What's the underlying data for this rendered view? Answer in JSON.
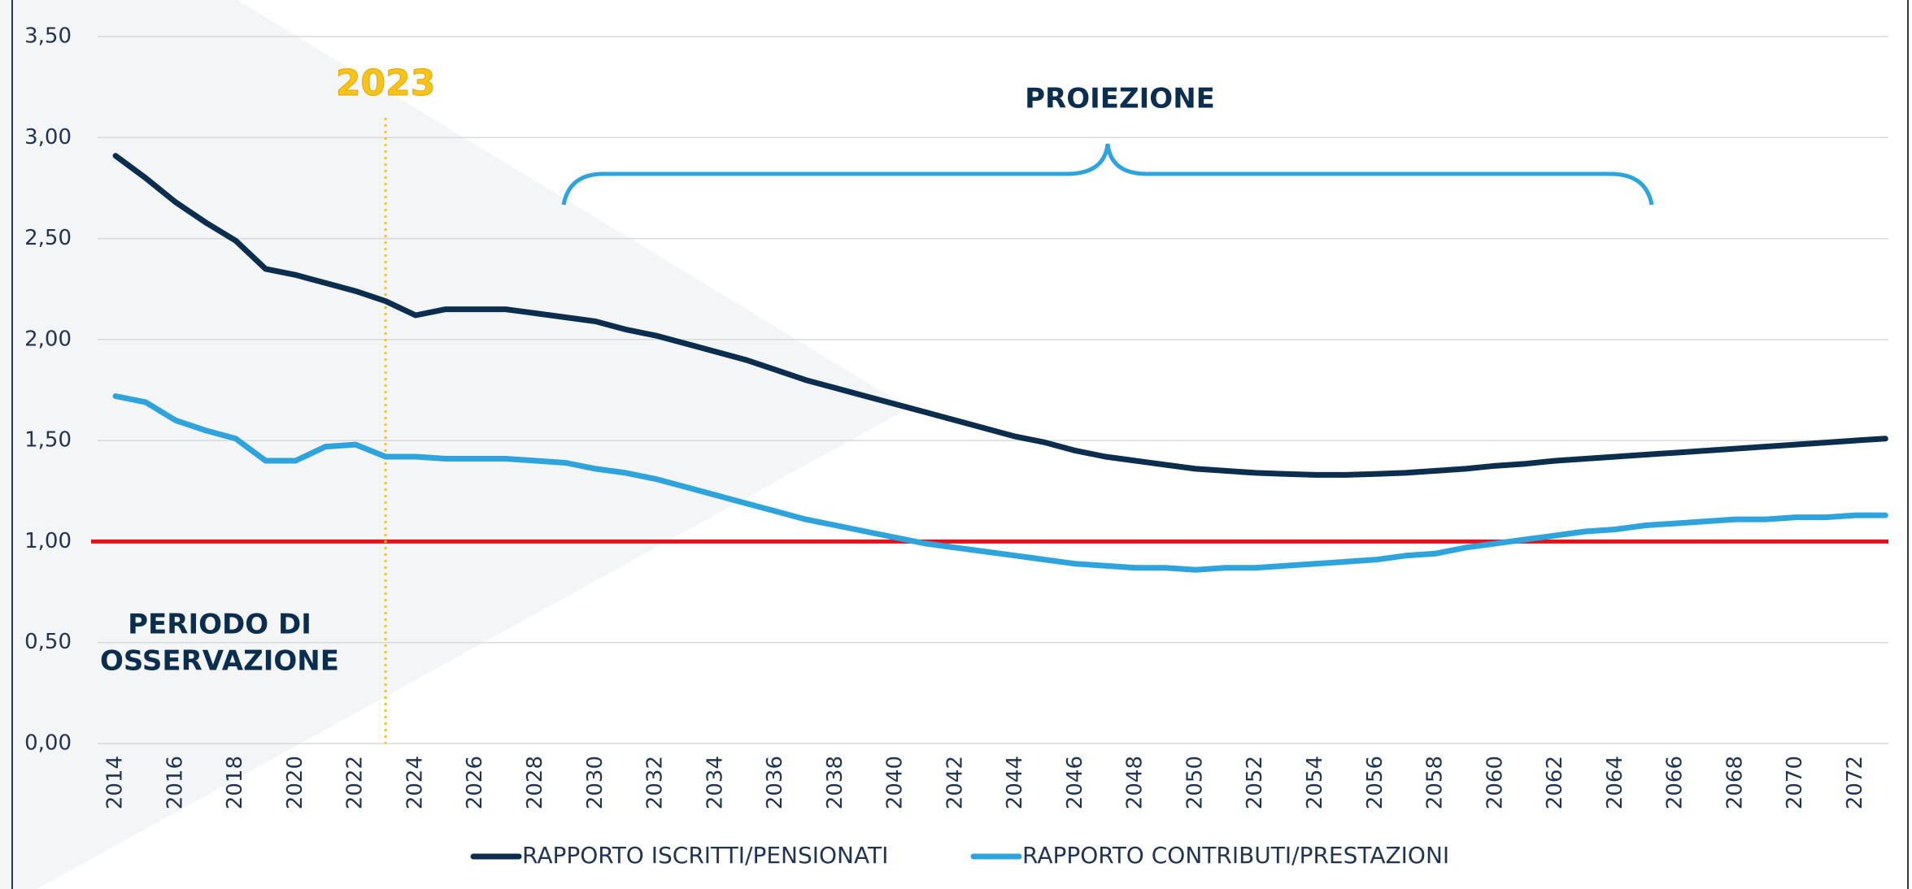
{
  "chart_data": {
    "type": "line",
    "x": [
      2014,
      2015,
      2016,
      2017,
      2018,
      2019,
      2020,
      2021,
      2022,
      2023,
      2024,
      2025,
      2026,
      2027,
      2028,
      2029,
      2030,
      2031,
      2032,
      2033,
      2034,
      2035,
      2036,
      2037,
      2038,
      2039,
      2040,
      2041,
      2042,
      2043,
      2044,
      2045,
      2046,
      2047,
      2048,
      2049,
      2050,
      2051,
      2052,
      2053,
      2054,
      2055,
      2056,
      2057,
      2058,
      2059,
      2060,
      2061,
      2062,
      2063,
      2064,
      2065,
      2066,
      2067,
      2068,
      2069,
      2070,
      2071,
      2072,
      2073
    ],
    "series": [
      {
        "name": "RAPPORTO ISCRITTI/PENSIONATI",
        "color": "#0b2d4e",
        "values": [
          2.91,
          2.8,
          2.68,
          2.58,
          2.49,
          2.35,
          2.32,
          2.28,
          2.24,
          2.19,
          2.12,
          2.15,
          2.15,
          2.15,
          2.13,
          2.11,
          2.09,
          2.05,
          2.02,
          1.98,
          1.94,
          1.9,
          1.85,
          1.8,
          1.76,
          1.72,
          1.68,
          1.64,
          1.6,
          1.56,
          1.52,
          1.49,
          1.45,
          1.42,
          1.4,
          1.38,
          1.36,
          1.35,
          1.34,
          1.335,
          1.33,
          1.33,
          1.335,
          1.34,
          1.35,
          1.36,
          1.375,
          1.385,
          1.4,
          1.41,
          1.42,
          1.43,
          1.44,
          1.45,
          1.46,
          1.47,
          1.48,
          1.49,
          1.5,
          1.51
        ]
      },
      {
        "name": "RAPPORTO CONTRIBUTI/PRESTAZIONI",
        "color": "#2ea3dc",
        "values": [
          1.72,
          1.69,
          1.6,
          1.55,
          1.51,
          1.4,
          1.4,
          1.47,
          1.48,
          1.42,
          1.42,
          1.41,
          1.41,
          1.41,
          1.4,
          1.39,
          1.36,
          1.34,
          1.31,
          1.27,
          1.23,
          1.19,
          1.15,
          1.11,
          1.08,
          1.05,
          1.02,
          0.99,
          0.97,
          0.95,
          0.93,
          0.91,
          0.89,
          0.88,
          0.87,
          0.87,
          0.86,
          0.87,
          0.87,
          0.88,
          0.89,
          0.9,
          0.91,
          0.93,
          0.94,
          0.97,
          0.99,
          1.01,
          1.03,
          1.05,
          1.06,
          1.08,
          1.09,
          1.1,
          1.11,
          1.11,
          1.12,
          1.12,
          1.13,
          1.13
        ]
      }
    ],
    "xlim": [
      2013.4,
      2073.1
    ],
    "xticks": [
      2014,
      2016,
      2018,
      2020,
      2022,
      2024,
      2026,
      2028,
      2030,
      2032,
      2034,
      2036,
      2038,
      2040,
      2042,
      2044,
      2046,
      2048,
      2050,
      2052,
      2054,
      2056,
      2058,
      2060,
      2062,
      2064,
      2066,
      2068,
      2070,
      2072
    ],
    "ylim": [
      0,
      3.5
    ],
    "yticks": [
      {
        "value": 0,
        "label": "0,00"
      },
      {
        "value": 0.5,
        "label": "0,50"
      },
      {
        "value": 1,
        "label": "1,00"
      },
      {
        "value": 1.5,
        "label": "1,50"
      },
      {
        "value": 2,
        "label": "2,00"
      },
      {
        "value": 2.5,
        "label": "2,50"
      },
      {
        "value": 3,
        "label": "3,00"
      },
      {
        "value": 3.5,
        "label": "3,50"
      }
    ],
    "grid": true,
    "reference_line": {
      "y": 1,
      "color": "#e3111b"
    },
    "vline": {
      "x": 2023,
      "color": "#f7c21a",
      "label": "2023"
    },
    "annotations": {
      "projection": "PROIEZIONE",
      "observation": [
        "PERIODO DI",
        "OSSERVAZIONE"
      ]
    },
    "legend": "bottom"
  }
}
